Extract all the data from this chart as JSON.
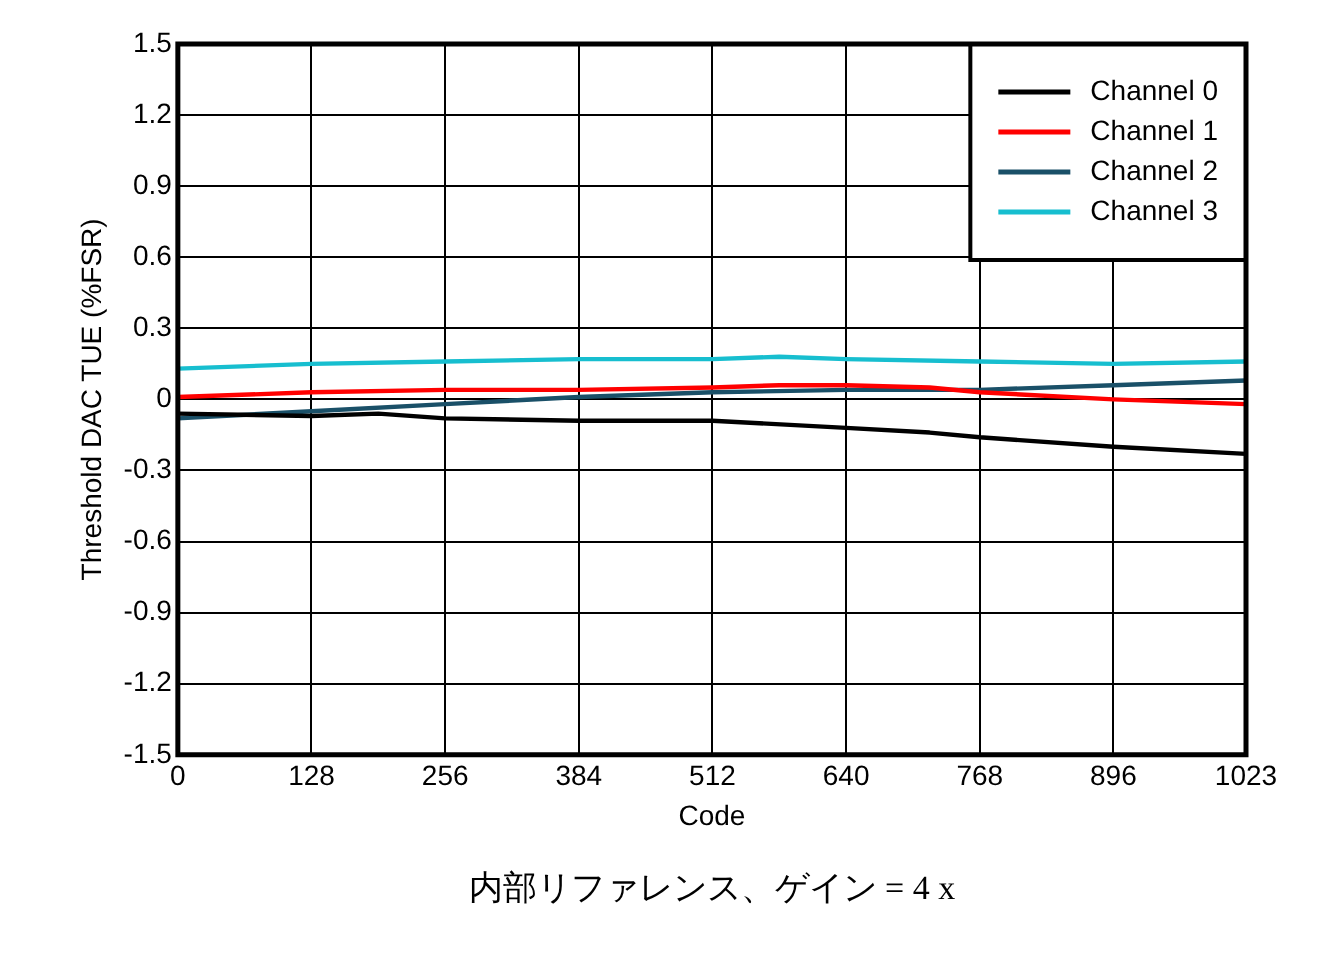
{
  "chart_data": {
    "type": "line",
    "xlabel": "Code",
    "ylabel": "Threshold DAC TUE (%FSR)",
    "annotations": [
      "内部リファレンス、ゲイン = 4 x"
    ],
    "xlim": [
      0,
      1023
    ],
    "xticks": [
      0,
      128,
      256,
      384,
      512,
      640,
      768,
      896,
      1023
    ],
    "ylim": [
      -1.5,
      1.5
    ],
    "yticks": [
      -1.5,
      -1.2,
      -0.9,
      -0.6,
      -0.3,
      0,
      0.3,
      0.6,
      0.9,
      1.2,
      1.5
    ],
    "grid": true,
    "legend": "top right",
    "marker": "none",
    "line_style": "solid",
    "series": [
      {
        "name": "Channel 0",
        "color": "#000000",
        "x": [
          0,
          128,
          192,
          256,
          384,
          512,
          640,
          720,
          768,
          896,
          1023
        ],
        "values": [
          -0.06,
          -0.07,
          -0.06,
          -0.08,
          -0.09,
          -0.09,
          -0.12,
          -0.14,
          -0.16,
          -0.2,
          -0.23
        ]
      },
      {
        "name": "Channel 1",
        "color": "#ff0000",
        "x": [
          0,
          128,
          256,
          384,
          512,
          576,
          640,
          720,
          768,
          896,
          1023
        ],
        "values": [
          0.01,
          0.03,
          0.04,
          0.04,
          0.05,
          0.06,
          0.06,
          0.05,
          0.03,
          0.0,
          -0.02
        ]
      },
      {
        "name": "Channel 2",
        "color": "#1a5068",
        "x": [
          0,
          128,
          256,
          384,
          512,
          640,
          768,
          896,
          1023
        ],
        "values": [
          -0.08,
          -0.05,
          -0.02,
          0.01,
          0.03,
          0.04,
          0.04,
          0.06,
          0.08
        ]
      },
      {
        "name": "Channel 3",
        "color": "#17becf",
        "x": [
          0,
          128,
          256,
          384,
          512,
          576,
          640,
          768,
          896,
          1023
        ],
        "values": [
          0.13,
          0.15,
          0.16,
          0.17,
          0.17,
          0.18,
          0.17,
          0.16,
          0.15,
          0.16
        ]
      }
    ]
  }
}
